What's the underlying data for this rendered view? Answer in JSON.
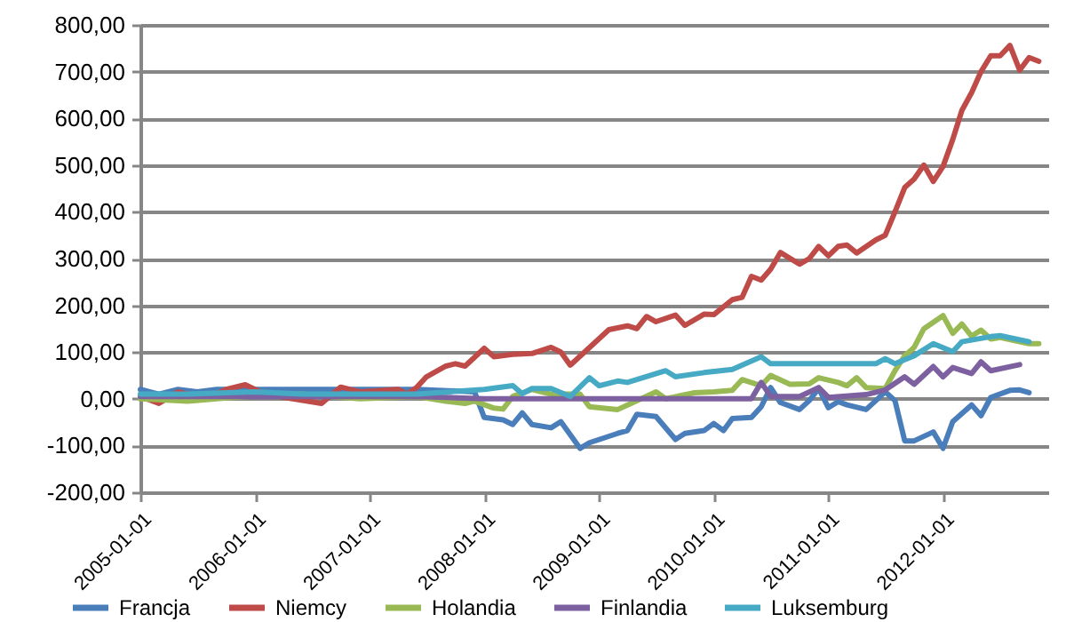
{
  "chart_data": {
    "type": "line",
    "xlim": [
      "2005-01-01",
      "2012-12-01"
    ],
    "xticks": [
      "2005-01-01",
      "2006-01-01",
      "2007-01-01",
      "2008-01-01",
      "2009-01-01",
      "2010-01-01",
      "2011-01-01",
      "2012-01-01"
    ],
    "ylim": [
      -200,
      800
    ],
    "yticks": [
      {
        "value": -200,
        "label": "-200,00"
      },
      {
        "value": -100,
        "label": "-100,00"
      },
      {
        "value": 0,
        "label": "0,00"
      },
      {
        "value": 100,
        "label": "100,00"
      },
      {
        "value": 200,
        "label": "200,00"
      },
      {
        "value": 300,
        "label": "300,00"
      },
      {
        "value": 400,
        "label": "400,00"
      },
      {
        "value": 500,
        "label": "500,00"
      },
      {
        "value": 600,
        "label": "600,00"
      },
      {
        "value": 700,
        "label": "700,00"
      },
      {
        "value": 800,
        "label": "800,00"
      }
    ],
    "grid": "y",
    "legend": "bottom",
    "marker": "none",
    "line_style": "solid",
    "series": [
      {
        "name": "Francja",
        "color": "#4a7ebb",
        "x": [
          "2005-01",
          "2005-03",
          "2005-05",
          "2005-07",
          "2005-09",
          "2005-12",
          "2006-06",
          "2006-09",
          "2007-01",
          "2007-06",
          "2007-12",
          "2008-01",
          "2008-03",
          "2008-04",
          "2008-05",
          "2008-06",
          "2008-08",
          "2008-09",
          "2008-11",
          "2008-12",
          "2009-03",
          "2009-04",
          "2009-05",
          "2009-07",
          "2009-09",
          "2009-10",
          "2009-12",
          "2010-01",
          "2010-02",
          "2010-03",
          "2010-05",
          "2010-06",
          "2010-07",
          "2010-08",
          "2010-10",
          "2010-11",
          "2010-12",
          "2011-01",
          "2011-02",
          "2011-03",
          "2011-05",
          "2011-06",
          "2011-07",
          "2011-08",
          "2011-09",
          "2011-10",
          "2011-12",
          "2012-01",
          "2012-02",
          "2012-04",
          "2012-05",
          "2012-06",
          "2012-08",
          "2012-09",
          "2012-10"
        ],
        "values": [
          20,
          10,
          20,
          15,
          20,
          20,
          20,
          20,
          20,
          20,
          15,
          -40,
          -45,
          -55,
          -30,
          -55,
          -62,
          -49,
          -106,
          -94,
          -74,
          -68,
          -33,
          -38,
          -87,
          -74,
          -68,
          -53,
          -68,
          -42,
          -40,
          -17,
          24,
          -8,
          -23,
          -4,
          22,
          -19,
          -6,
          -13,
          -23,
          -4,
          15,
          -4,
          -90,
          -90,
          -71,
          -106,
          -49,
          -13,
          -36,
          3,
          18,
          19,
          13
        ]
      },
      {
        "name": "Niemcy",
        "color": "#be4b48",
        "x": [
          "2005-01",
          "2005-03",
          "2005-05",
          "2005-08",
          "2005-10",
          "2005-12",
          "2006-02",
          "2006-05",
          "2006-08",
          "2006-10",
          "2006-12",
          "2007-04",
          "2007-05",
          "2007-06",
          "2007-07",
          "2007-09",
          "2007-10",
          "2007-11",
          "2008-01",
          "2008-02",
          "2008-04",
          "2008-06",
          "2008-08",
          "2008-09",
          "2008-10",
          "2009-02",
          "2009-04",
          "2009-05",
          "2009-06",
          "2009-07",
          "2009-09",
          "2009-10",
          "2009-12",
          "2010-01",
          "2010-03",
          "2010-04",
          "2010-05",
          "2010-06",
          "2010-07",
          "2010-08",
          "2010-10",
          "2010-11",
          "2010-12",
          "2011-01",
          "2011-02",
          "2011-03",
          "2011-04",
          "2011-06",
          "2011-07",
          "2011-08",
          "2011-09",
          "2011-10",
          "2011-11",
          "2011-12",
          "2012-01",
          "2012-02",
          "2012-03",
          "2012-04",
          "2012-05",
          "2012-06",
          "2012-07",
          "2012-08",
          "2012-09",
          "2012-10",
          "2012-11"
        ],
        "values": [
          5,
          -10,
          15,
          0,
          20,
          30,
          10,
          0,
          -10,
          25,
          15,
          20,
          10,
          25,
          47,
          70,
          75,
          70,
          108,
          90,
          95,
          97,
          110,
          100,
          72,
          148,
          156,
          150,
          176,
          165,
          179,
          157,
          181,
          180,
          212,
          217,
          262,
          254,
          277,
          313,
          288,
          300,
          326,
          306,
          326,
          329,
          312,
          340,
          350,
          400,
          452,
          470,
          500,
          465,
          497,
          555,
          617,
          655,
          700,
          734,
          734,
          756,
          703,
          730,
          722
        ]
      },
      {
        "name": "Holandia",
        "color": "#98b954",
        "x": [
          "2005-01",
          "2005-06",
          "2005-12",
          "2006-06",
          "2006-12",
          "2007-06",
          "2007-09",
          "2007-11",
          "2007-12",
          "2008-02",
          "2008-03",
          "2008-04",
          "2008-06",
          "2008-08",
          "2008-11",
          "2008-12",
          "2009-03",
          "2009-05",
          "2009-07",
          "2009-08",
          "2009-11",
          "2010-01",
          "2010-03",
          "2010-04",
          "2010-06",
          "2010-07",
          "2010-09",
          "2010-11",
          "2010-12",
          "2011-02",
          "2011-03",
          "2011-04",
          "2011-05",
          "2011-07",
          "2011-08",
          "2011-09",
          "2011-10",
          "2011-11",
          "2012-01",
          "2012-02",
          "2012-03",
          "2012-04",
          "2012-05",
          "2012-06",
          "2012-07",
          "2012-10",
          "2012-11"
        ],
        "values": [
          0,
          -5,
          5,
          10,
          0,
          5,
          -5,
          -10,
          -5,
          -20,
          -22,
          5,
          20,
          10,
          10,
          -17,
          -23,
          -4,
          15,
          0,
          13,
          15,
          18,
          41,
          28,
          50,
          31,
          32,
          45,
          35,
          28,
          45,
          24,
          22,
          60,
          92,
          110,
          150,
          178,
          140,
          160,
          134,
          147,
          128,
          131,
          118,
          118
        ]
      },
      {
        "name": "Finlandia",
        "color": "#7d60a0",
        "x": [
          "2005-01",
          "2006-06",
          "2007-06",
          "2008-01",
          "2010-05",
          "2010-06",
          "2010-07",
          "2010-10",
          "2010-12",
          "2011-01",
          "2011-05",
          "2011-07",
          "2011-09",
          "2011-10",
          "2011-12",
          "2012-01",
          "2012-02",
          "2012-04",
          "2012-05",
          "2012-06",
          "2012-09"
        ],
        "values": [
          5,
          5,
          5,
          0,
          0,
          35,
          5,
          5,
          24,
          3,
          9,
          19,
          47,
          31,
          69,
          47,
          67,
          54,
          79,
          60,
          73
        ]
      },
      {
        "name": "Luksemburg",
        "color": "#46aac5",
        "x": [
          "2005-01",
          "2005-06",
          "2006-01",
          "2006-06",
          "2007-01",
          "2007-06",
          "2008-01",
          "2008-04",
          "2008-05",
          "2008-06",
          "2008-08",
          "2008-10",
          "2008-12",
          "2009-01",
          "2009-03",
          "2009-04",
          "2009-08",
          "2009-09",
          "2009-12",
          "2010-03",
          "2010-06",
          "2010-07",
          "2011-06",
          "2011-07",
          "2011-08",
          "2011-10",
          "2011-12",
          "2012-02",
          "2012-03",
          "2012-06",
          "2012-07",
          "2012-10"
        ],
        "values": [
          10,
          10,
          15,
          10,
          10,
          10,
          20,
          28,
          11,
          22,
          22,
          5,
          45,
          28,
          38,
          35,
          60,
          47,
          56,
          63,
          90,
          75,
          75,
          86,
          75,
          92,
          118,
          101,
          122,
          133,
          135,
          122
        ]
      }
    ]
  }
}
